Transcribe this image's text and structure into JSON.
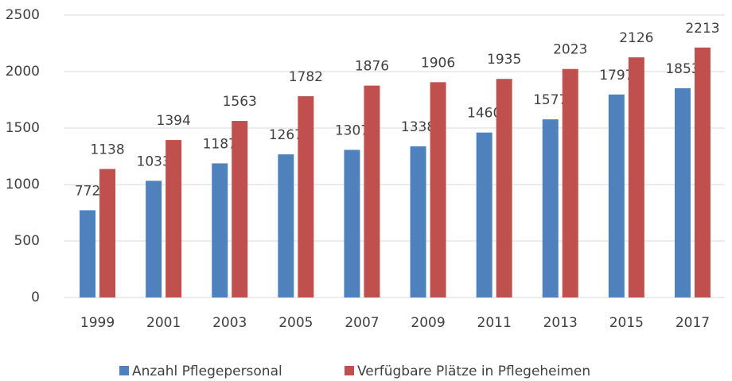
{
  "chart_data": {
    "type": "bar",
    "categories": [
      "1999",
      "2001",
      "2003",
      "2005",
      "2007",
      "2009",
      "2011",
      "2013",
      "2015",
      "2017"
    ],
    "series": [
      {
        "name": "Anzahl Pflegepersonal",
        "color": "#4f81bd",
        "values": [
          772,
          1033,
          1187,
          1267,
          1307,
          1338,
          1460,
          1577,
          1797,
          1853
        ]
      },
      {
        "name": "Verfügbare Plätze in Pflegeheimen",
        "color": "#c0504d",
        "values": [
          1138,
          1394,
          1563,
          1782,
          1876,
          1906,
          1935,
          2023,
          2126,
          2213
        ]
      }
    ],
    "ylim": [
      0,
      2500
    ],
    "yticks": [
      0,
      500,
      1000,
      1500,
      2000,
      2500
    ],
    "grid": true,
    "legend": "bottom"
  }
}
